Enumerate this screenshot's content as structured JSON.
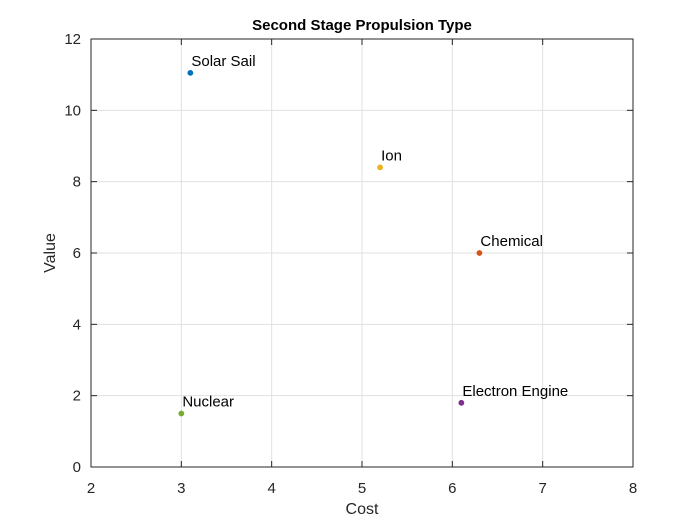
{
  "chart_data": {
    "type": "scatter",
    "title": "Second Stage Propulsion Type",
    "xlabel": "Cost",
    "ylabel": "Value",
    "xlim": [
      2,
      8
    ],
    "ylim": [
      0,
      12
    ],
    "xticks": [
      2,
      3,
      4,
      5,
      6,
      7,
      8
    ],
    "yticks": [
      0,
      2,
      4,
      6,
      8,
      10,
      12
    ],
    "grid": true,
    "points": [
      {
        "label": "Solar Sail",
        "x": 3.1,
        "y": 11.05,
        "color": "#0072BD"
      },
      {
        "label": "Ion",
        "x": 5.2,
        "y": 8.4,
        "color": "#EDB120"
      },
      {
        "label": "Chemical",
        "x": 6.3,
        "y": 6.0,
        "color": "#D95319"
      },
      {
        "label": "Electron Engine",
        "x": 6.1,
        "y": 1.8,
        "color": "#7E2F8E"
      },
      {
        "label": "Nuclear",
        "x": 3.0,
        "y": 1.5,
        "color": "#77AC30"
      }
    ]
  }
}
